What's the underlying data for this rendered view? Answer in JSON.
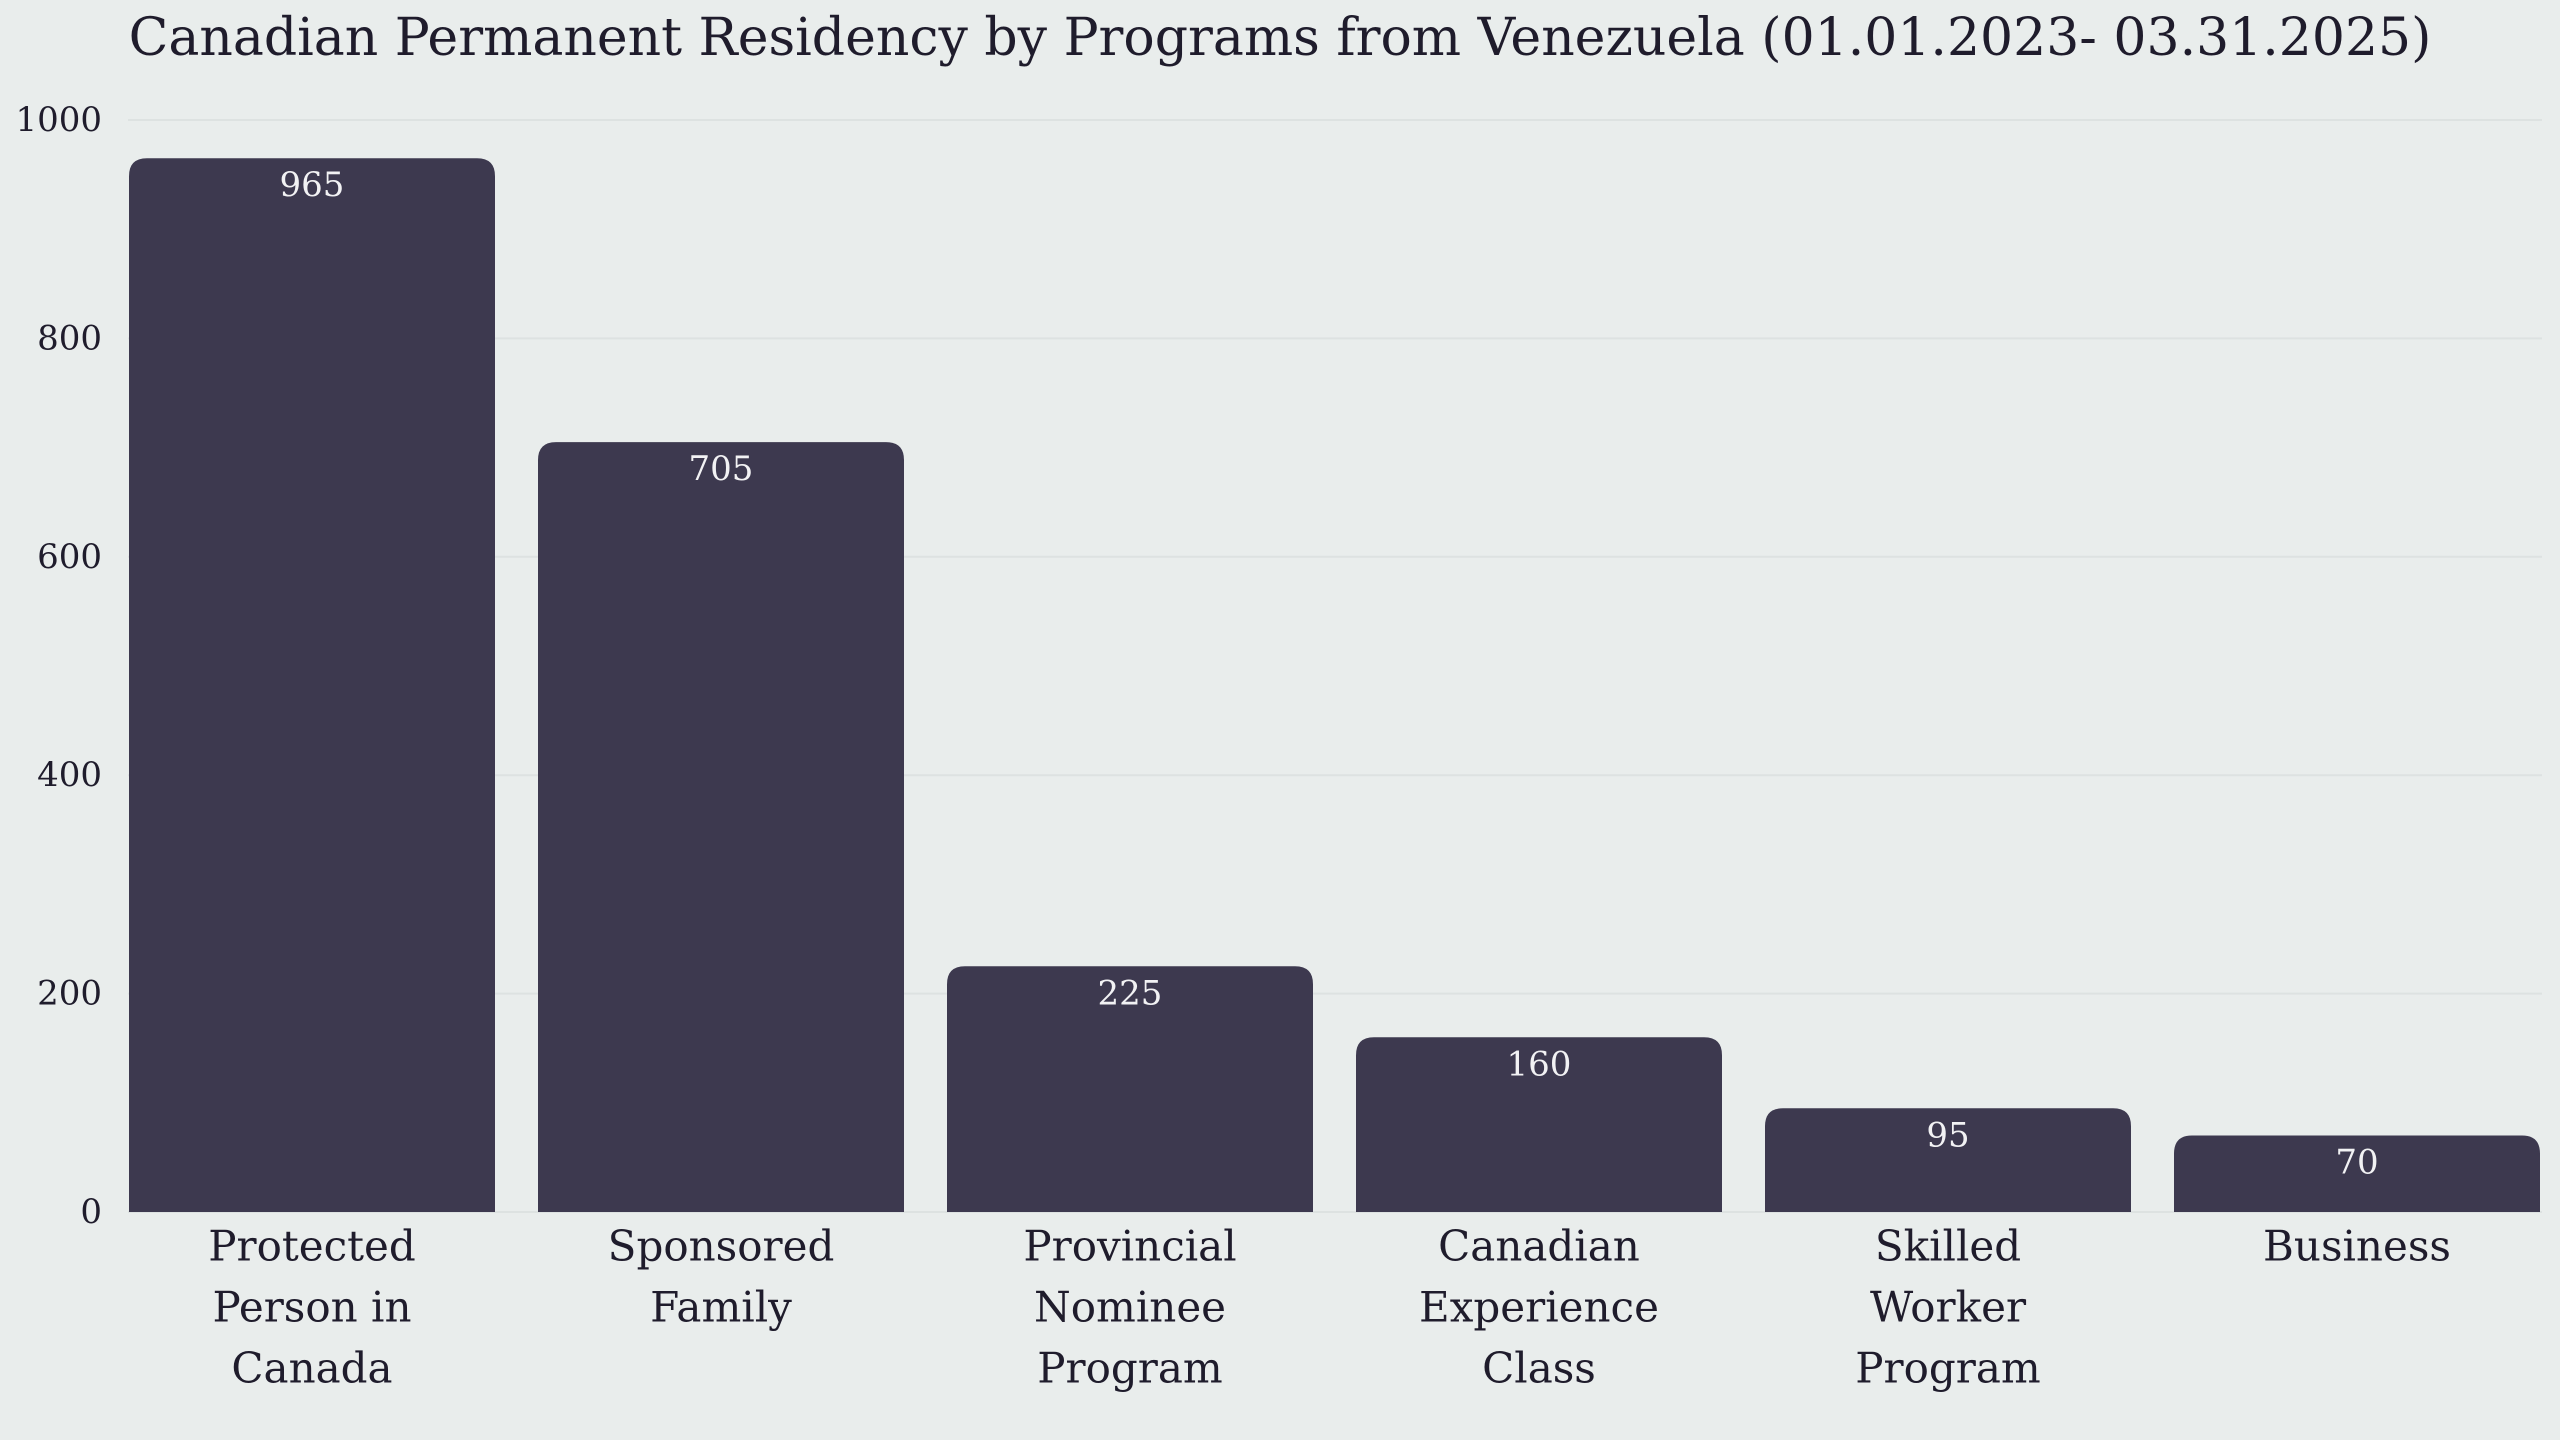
{
  "chart_data": {
    "type": "bar",
    "title": "Canadian Permanent Residency by Programs from Venezuela (01.01.2023- 03.31.2025)",
    "categories": [
      "Protected Person in Canada",
      "Sponsored Family",
      "Provincial Nominee Program",
      "Canadian Experience Class",
      "Skilled Worker Program",
      "Business"
    ],
    "category_lines": [
      [
        "Protected",
        "Person in",
        "Canada"
      ],
      [
        "Sponsored",
        "Family"
      ],
      [
        "Provincial",
        "Nominee",
        "Program"
      ],
      [
        "Canadian",
        "Experience",
        "Class"
      ],
      [
        "Skilled",
        "Worker",
        "Program"
      ],
      [
        "Business"
      ]
    ],
    "values": [
      965,
      705,
      225,
      160,
      95,
      70
    ],
    "value_labels": [
      "965",
      "705",
      "225",
      "160",
      "95",
      "70"
    ],
    "ylim": [
      0,
      1000
    ],
    "yticks": [
      0,
      200,
      400,
      600,
      800,
      1000
    ],
    "ytick_labels": [
      "0",
      "200",
      "400",
      "600",
      "800",
      "1000"
    ],
    "xlabel": "",
    "ylabel": "",
    "grid": true,
    "bar_color": "#3d394f",
    "grid_color": "#dde2e1",
    "background_color": "#e9edec"
  }
}
